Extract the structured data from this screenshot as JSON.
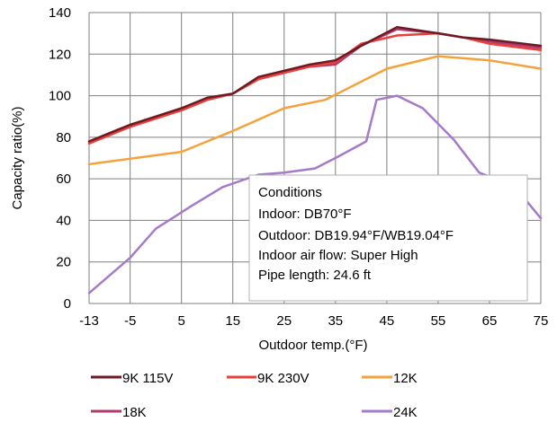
{
  "chart_data": {
    "type": "line",
    "xlabel": "Outdoor temp.(°F)",
    "ylabel": "Capacity ratio(%)",
    "xlim": [
      -13,
      75
    ],
    "ylim": [
      0,
      140
    ],
    "x_ticks": [
      -13,
      -5,
      5,
      15,
      25,
      35,
      45,
      55,
      65,
      75
    ],
    "y_ticks": [
      0,
      20,
      40,
      60,
      80,
      100,
      120,
      140
    ],
    "x_tick_labels": [
      "-13",
      "-5",
      "5",
      "15",
      "25",
      "35",
      "45",
      "55",
      "65",
      "75"
    ],
    "y_tick_labels": [
      "0",
      "20",
      "40",
      "60",
      "80",
      "100",
      "120",
      "140"
    ],
    "grid": true,
    "legend_position": "bottom",
    "series": [
      {
        "name": "9K 115V",
        "color": "#6e1a24",
        "points": [
          [
            -13,
            78
          ],
          [
            -5,
            86
          ],
          [
            5,
            94
          ],
          [
            10,
            99
          ],
          [
            15,
            101
          ],
          [
            20,
            109
          ],
          [
            25,
            112
          ],
          [
            30,
            115
          ],
          [
            35,
            117
          ],
          [
            40,
            124
          ],
          [
            47,
            133
          ],
          [
            55,
            130
          ],
          [
            60,
            128
          ],
          [
            65,
            127
          ],
          [
            75,
            124
          ]
        ]
      },
      {
        "name": "9K 230V",
        "color": "#e8403a",
        "points": [
          [
            -13,
            77
          ],
          [
            -5,
            85
          ],
          [
            5,
            93
          ],
          [
            10,
            98
          ],
          [
            15,
            101
          ],
          [
            20,
            108
          ],
          [
            25,
            111
          ],
          [
            30,
            114
          ],
          [
            35,
            116
          ],
          [
            40,
            125
          ],
          [
            47,
            129
          ],
          [
            55,
            130
          ],
          [
            60,
            128
          ],
          [
            65,
            125
          ],
          [
            75,
            122
          ]
        ]
      },
      {
        "name": "12K",
        "color": "#f5a23a",
        "points": [
          [
            -13,
            67
          ],
          [
            5,
            73
          ],
          [
            15,
            83
          ],
          [
            25,
            94
          ],
          [
            33,
            98
          ],
          [
            45,
            113
          ],
          [
            55,
            119
          ],
          [
            65,
            117
          ],
          [
            75,
            113
          ]
        ]
      },
      {
        "name": "18K",
        "color": "#b03a6e",
        "points": [
          [
            -13,
            78
          ],
          [
            -5,
            86
          ],
          [
            5,
            93
          ],
          [
            10,
            98
          ],
          [
            15,
            101
          ],
          [
            20,
            108
          ],
          [
            25,
            112
          ],
          [
            30,
            114
          ],
          [
            35,
            115
          ],
          [
            40,
            124
          ],
          [
            47,
            132
          ],
          [
            55,
            130
          ],
          [
            60,
            128
          ],
          [
            65,
            126
          ],
          [
            75,
            123
          ]
        ]
      },
      {
        "name": "24K",
        "color": "#a57bc8",
        "points": [
          [
            -13,
            5
          ],
          [
            -5,
            22
          ],
          [
            0,
            36
          ],
          [
            7,
            47
          ],
          [
            13,
            56
          ],
          [
            20,
            62
          ],
          [
            25,
            63
          ],
          [
            31,
            65
          ],
          [
            35,
            70
          ],
          [
            41,
            78
          ],
          [
            43,
            98
          ],
          [
            47,
            100
          ],
          [
            52,
            94
          ],
          [
            58,
            79
          ],
          [
            63,
            63
          ],
          [
            70,
            56
          ],
          [
            75,
            41
          ]
        ]
      }
    ],
    "annotation": {
      "lines": [
        "Conditions",
        "Indoor: DB70°F",
        "Outdoor: DB19.94°F/WB19.04°F",
        "Indoor air flow: Super High",
        "Pipe length: 24.6 ft"
      ]
    }
  }
}
